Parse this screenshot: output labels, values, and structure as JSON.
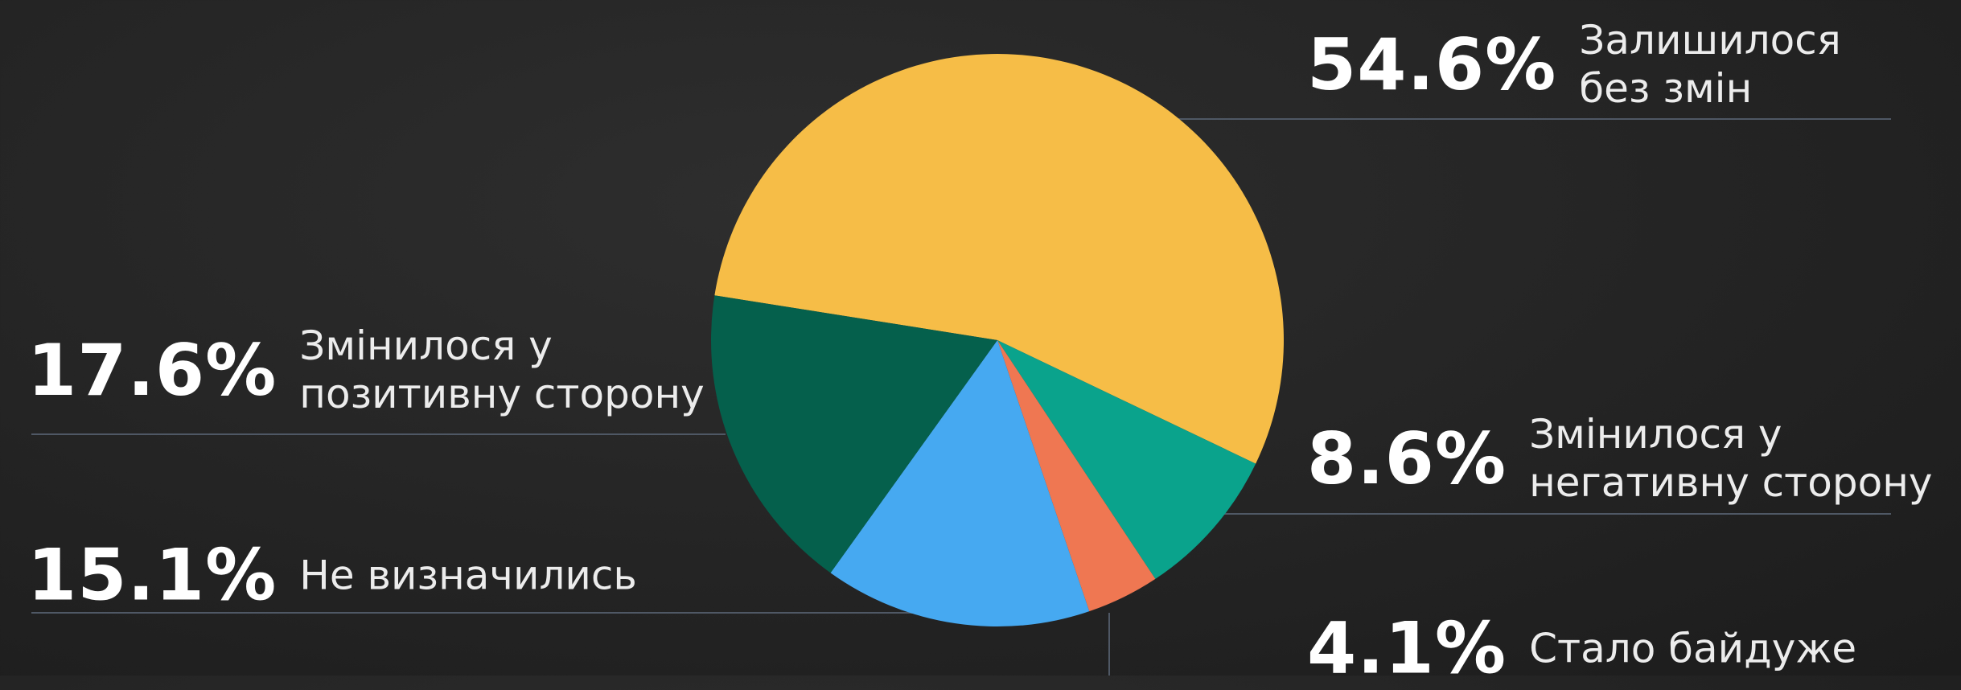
{
  "chart_data": {
    "type": "pie",
    "categories": [
      "Залишилося без змін",
      "Змінилося у негативну сторону",
      "Стало байдуже",
      "Не визначились",
      "Змінилося у позитивну сторону"
    ],
    "values": [
      54.6,
      8.6,
      4.1,
      15.1,
      17.6
    ],
    "value_labels": [
      "54.6%",
      "8.6%",
      "4.1%",
      "15.1%",
      "17.6%"
    ],
    "colors": [
      "#f6bd47",
      "#0aa38c",
      "#ef7752",
      "#46a9f1",
      "#05604c"
    ]
  }
}
